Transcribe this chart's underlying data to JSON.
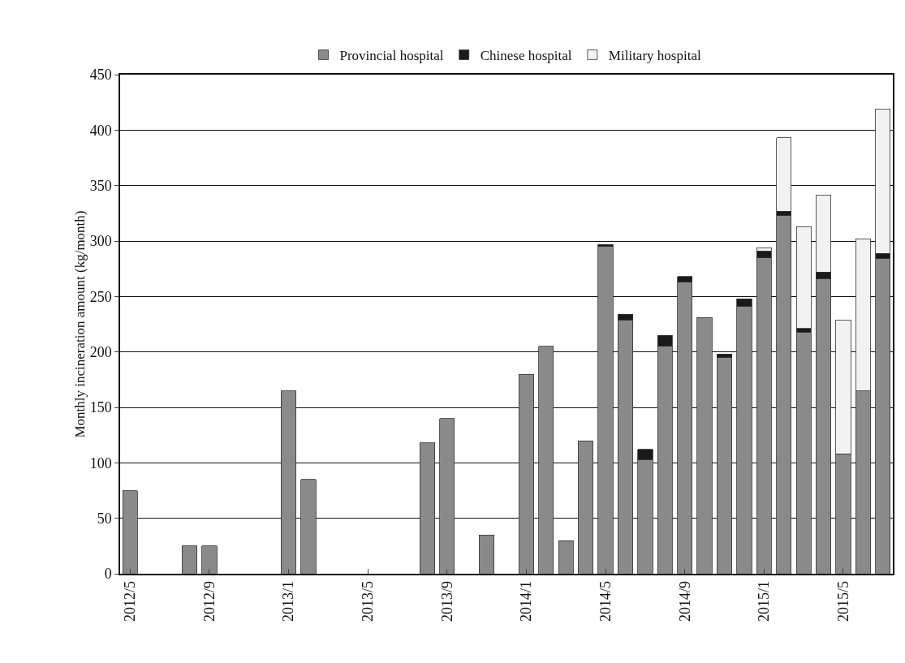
{
  "chart_data": {
    "type": "bar",
    "stacked": true,
    "ylabel": "Monthly incineration amount (kg/month)",
    "categories": [
      "2012/5",
      null,
      null,
      null,
      "2012/9",
      null,
      null,
      null,
      "2013/1",
      null,
      null,
      null,
      "2013/5",
      null,
      null,
      null,
      "2013/9",
      null,
      null,
      null,
      "2014/1",
      null,
      null,
      null,
      "2014/5",
      null,
      null,
      null,
      "2014/9",
      null,
      null,
      null,
      "2015/1",
      null,
      null,
      null,
      "2015/5",
      null,
      null
    ],
    "series": [
      {
        "name": "Provincial hospital",
        "color": "#8a8a8a",
        "values": [
          75,
          null,
          null,
          25,
          25,
          null,
          null,
          null,
          165,
          85,
          null,
          null,
          null,
          null,
          null,
          118,
          140,
          null,
          35,
          null,
          180,
          205,
          30,
          120,
          295,
          229,
          103,
          205,
          263,
          231,
          195,
          241,
          285,
          323,
          218,
          266,
          108,
          165,
          284
        ]
      },
      {
        "name": "Chinese hospital",
        "color": "#1a1a1a",
        "values": [
          null,
          null,
          null,
          null,
          null,
          null,
          null,
          null,
          null,
          null,
          null,
          null,
          null,
          null,
          null,
          null,
          null,
          null,
          null,
          null,
          null,
          null,
          null,
          null,
          2,
          5,
          9,
          10,
          5,
          null,
          3,
          7,
          6,
          4,
          3,
          6,
          null,
          null,
          5
        ]
      },
      {
        "name": "Military hospital",
        "color": "#f2f2f2",
        "values": [
          null,
          null,
          null,
          null,
          null,
          null,
          null,
          null,
          null,
          null,
          null,
          null,
          null,
          null,
          null,
          null,
          null,
          null,
          null,
          null,
          null,
          null,
          null,
          null,
          null,
          null,
          null,
          null,
          null,
          null,
          null,
          null,
          3,
          66,
          92,
          69,
          121,
          137,
          130
        ]
      }
    ],
    "ylim": [
      0,
      450
    ],
    "yticks": [
      0,
      50,
      100,
      150,
      200,
      250,
      300,
      350,
      400,
      450
    ],
    "grid": "y",
    "legend": "top"
  }
}
